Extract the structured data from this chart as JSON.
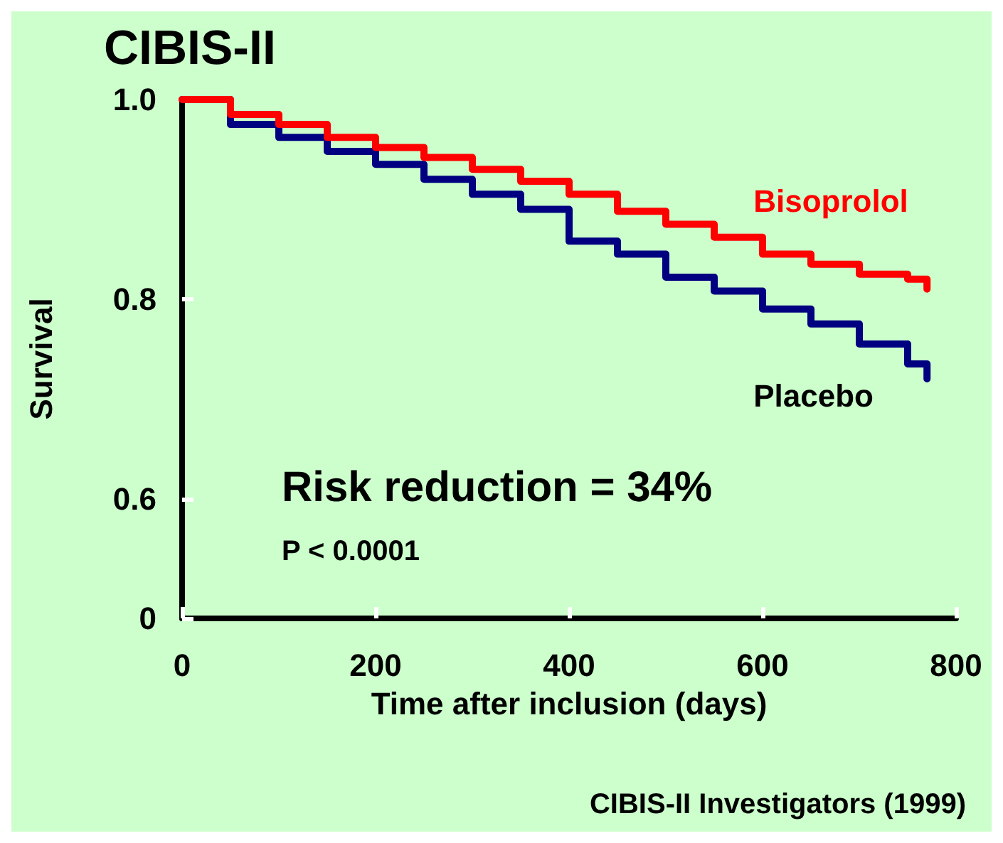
{
  "chart_data": {
    "type": "step",
    "title": "CIBIS-II",
    "xlabel": "Time after inclusion (days)",
    "ylabel": "Survival",
    "x": [
      0,
      50,
      100,
      150,
      200,
      250,
      300,
      350,
      400,
      450,
      500,
      550,
      600,
      650,
      700,
      750,
      770
    ],
    "series": [
      {
        "name": "Bisoprolol",
        "color": "#ff0000",
        "values": [
          1.0,
          0.985,
          0.975,
          0.962,
          0.952,
          0.942,
          0.93,
          0.918,
          0.905,
          0.888,
          0.875,
          0.862,
          0.845,
          0.835,
          0.825,
          0.82,
          0.81
        ]
      },
      {
        "name": "Placebo",
        "color": "#000080",
        "values": [
          1.0,
          0.975,
          0.962,
          0.948,
          0.935,
          0.92,
          0.905,
          0.89,
          0.858,
          0.845,
          0.822,
          0.808,
          0.79,
          0.775,
          0.755,
          0.735,
          0.72
        ]
      }
    ],
    "xlim": [
      0,
      800
    ],
    "xticks": [
      0,
      200,
      400,
      600,
      800
    ],
    "ylim": [
      0.48,
      1.0
    ],
    "yticks": [
      {
        "value": 0.48,
        "label": "0"
      },
      {
        "value": 0.6,
        "label": "0.6"
      },
      {
        "value": 0.8,
        "label": "0.8"
      },
      {
        "value": 1.0,
        "label": "1.0"
      }
    ],
    "grid": false,
    "legend": false,
    "marker": "none",
    "line_style": "solid",
    "annotations": [
      "Risk reduction = 34%",
      "P < 0.0001",
      "CIBIS-II Investigators (1999)"
    ]
  }
}
